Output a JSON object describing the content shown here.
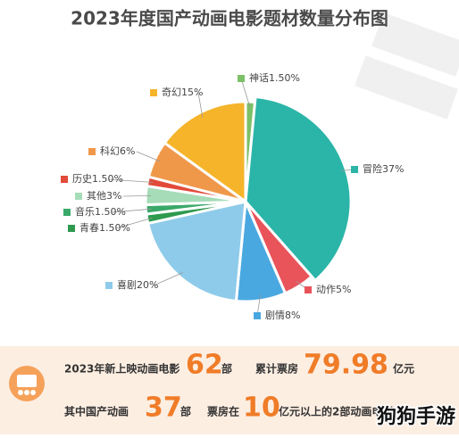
{
  "chart_data": {
    "type": "pie",
    "title": "2023年度国产动画电影题材数量分布图",
    "categories": [
      "神话",
      "冒险",
      "动作",
      "剧情",
      "喜剧",
      "青春",
      "音乐",
      "其他",
      "历史",
      "科幻",
      "奇幻"
    ],
    "values": [
      1.5,
      37,
      5,
      8,
      20,
      1.5,
      1.5,
      3,
      1.5,
      6,
      15
    ],
    "value_labels": [
      "1.50%",
      "37%",
      "5%",
      "8%",
      "20%",
      "1.50%",
      "1.50%",
      "3%",
      "1.50%",
      "6%",
      "15%"
    ],
    "colors": [
      "#7cc068",
      "#2bb5a8",
      "#e8545a",
      "#4aa8e0",
      "#8ecbea",
      "#2e9a4e",
      "#3aa868",
      "#a6dcb8",
      "#e24a3a",
      "#f0984a",
      "#f5b42a"
    ]
  },
  "summary": {
    "row1": {
      "lead": "2023年新上映动画电影",
      "count": 62,
      "count_unit": "部",
      "box_label": "累计票房",
      "box_office": 79.98,
      "box_unit": "亿元"
    },
    "row2": {
      "lead": "其中国产动画",
      "count": 37,
      "count_unit": "部",
      "box_label": "票房在",
      "threshold": 10,
      "tail": "亿元以上的2部动画电影"
    }
  },
  "watermark": "狗狗手游"
}
